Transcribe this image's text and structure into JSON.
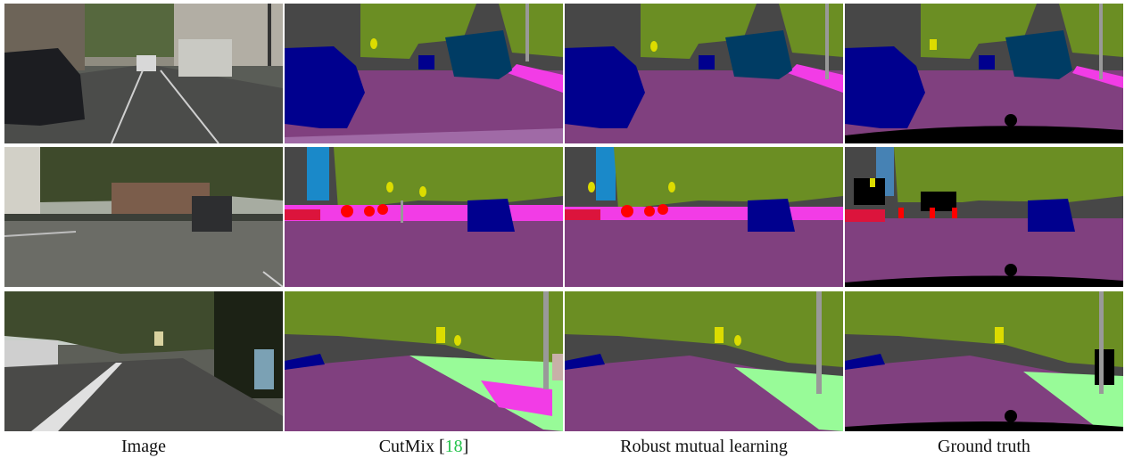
{
  "figure": {
    "columns": [
      {
        "key": "image",
        "label": "Image"
      },
      {
        "key": "cutmix",
        "label": "CutMix [",
        "ref": "18",
        "suffix": "]"
      },
      {
        "key": "rml",
        "label": "Robust mutual learning"
      },
      {
        "key": "gt",
        "label": "Ground truth"
      }
    ],
    "rows": 3
  },
  "palette": {
    "road": "#80407f",
    "sidewalk": "#f23ce6",
    "building": "#474747",
    "vegetation": "#6b8e23",
    "sky": "#4682b4",
    "car": "#00008e",
    "truck_bus": "#003c64",
    "pole": "#999999",
    "traffic_sign": "#dcdc00",
    "person": "#dc143c",
    "rider": "#ff0000",
    "terrain": "#98fb98",
    "wall": "#c8b0a8",
    "ignore": "#000000"
  }
}
